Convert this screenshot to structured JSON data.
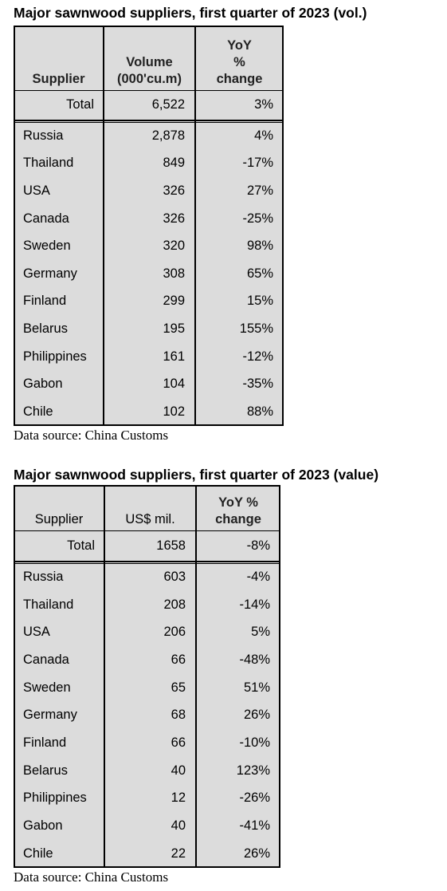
{
  "tables": [
    {
      "title": "Major sawnwood suppliers, first quarter of 2023 (vol.)",
      "header": [
        "Supplier",
        "Volume\n(000'cu.m)",
        "YoY\n%\nchange"
      ],
      "total": [
        "Total",
        "6,522",
        "3%"
      ],
      "rows": [
        [
          "Russia",
          "2,878",
          "4%"
        ],
        [
          "Thailand",
          "849",
          "-17%"
        ],
        [
          "USA",
          "326",
          "27%"
        ],
        [
          "Canada",
          "326",
          "-25%"
        ],
        [
          "Sweden",
          "320",
          "98%"
        ],
        [
          "Germany",
          "308",
          "65%"
        ],
        [
          "Finland",
          "299",
          "15%"
        ],
        [
          "Belarus",
          "195",
          "155%"
        ],
        [
          "Philippines",
          "161",
          "-12%"
        ],
        [
          "Gabon",
          "104",
          "-35%"
        ],
        [
          "Chile",
          "102",
          "88%"
        ]
      ],
      "source": "Data source: China Customs"
    },
    {
      "title": "Major sawnwood suppliers, first quarter of 2023 (value)",
      "header": [
        "Supplier",
        "US$ mil.",
        "YoY  %\nchange"
      ],
      "total": [
        "Total",
        "1658",
        "-8%"
      ],
      "rows": [
        [
          "Russia",
          "603",
          "-4%"
        ],
        [
          "Thailand",
          "208",
          "-14%"
        ],
        [
          "USA",
          "206",
          "5%"
        ],
        [
          "Canada",
          "66",
          "-48%"
        ],
        [
          "Sweden",
          "65",
          "51%"
        ],
        [
          "Germany",
          "68",
          "26%"
        ],
        [
          "Finland",
          "66",
          "-10%"
        ],
        [
          "Belarus",
          "40",
          "123%"
        ],
        [
          "Philippines",
          "12",
          "-26%"
        ],
        [
          "Gabon",
          "40",
          "-41%"
        ],
        [
          "Chile",
          "22",
          "26%"
        ]
      ],
      "source": "Data source: China Customs"
    }
  ]
}
